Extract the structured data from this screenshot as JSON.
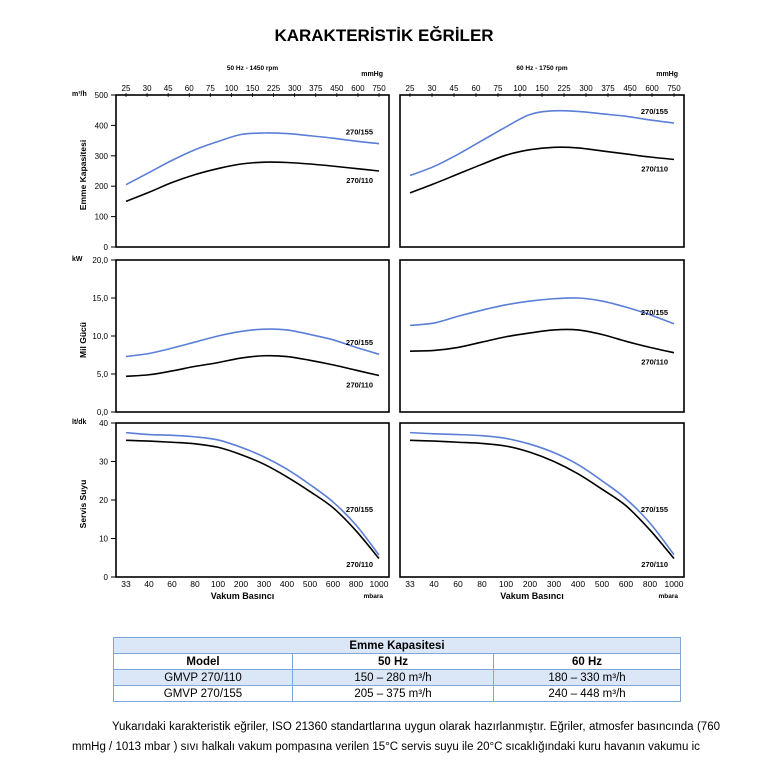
{
  "title": "KARAKTERİSTİK EĞRİLER",
  "colors": {
    "curve_155": "#5b7fd6",
    "curve_110": "#000000"
  },
  "top_axis": {
    "ticks": [
      "25",
      "30",
      "45",
      "60",
      "75",
      "100",
      "150",
      "225",
      "300",
      "375",
      "450",
      "600",
      "750"
    ],
    "unit": "mmHg",
    "left_label": "50 Hz - 1450 rpm",
    "right_label": "60 Hz - 1750 rpm"
  },
  "bottom_axis": {
    "ticks": [
      "33",
      "40",
      "60",
      "80",
      "100",
      "200",
      "300",
      "400",
      "500",
      "600",
      "800",
      "1000"
    ],
    "unit": "mbara",
    "label": "Vakum Basıncı"
  },
  "rows": [
    {
      "ylabel": "Emme Kapasitesi",
      "unit": "m³/h",
      "ylim": [
        0,
        500
      ],
      "ticks": [
        "0",
        "100",
        "200",
        "300",
        "400",
        "500"
      ]
    },
    {
      "ylabel": "Mil Gücü",
      "unit": "kW",
      "ylim": [
        0,
        20
      ],
      "ticks": [
        "0,0",
        "5,0",
        "10,0",
        "15,0",
        "20,0"
      ]
    },
    {
      "ylabel": "Servis Suyu",
      "unit": "lt/dk",
      "ylim": [
        0,
        40
      ],
      "ticks": [
        "0",
        "10",
        "20",
        "30",
        "40"
      ]
    }
  ],
  "chart_data": [
    {
      "type": "line",
      "panel": "capacity-50hz",
      "x": [
        33,
        40,
        60,
        80,
        100,
        200,
        300,
        400,
        500,
        600,
        800,
        1000
      ],
      "series": [
        {
          "name": "270/155",
          "values": [
            205,
            245,
            285,
            320,
            347,
            370,
            375,
            373,
            366,
            358,
            348,
            340
          ]
        },
        {
          "name": "270/110",
          "values": [
            150,
            180,
            212,
            238,
            258,
            273,
            279,
            278,
            273,
            266,
            258,
            250
          ]
        }
      ]
    },
    {
      "type": "line",
      "panel": "capacity-60hz",
      "x": [
        33,
        40,
        60,
        80,
        100,
        200,
        300,
        400,
        500,
        600,
        800,
        1000
      ],
      "series": [
        {
          "name": "270/155",
          "values": [
            235,
            265,
            305,
            350,
            395,
            436,
            448,
            446,
            438,
            430,
            418,
            408
          ]
        },
        {
          "name": "270/110",
          "values": [
            178,
            208,
            240,
            272,
            302,
            320,
            328,
            326,
            316,
            306,
            296,
            288
          ]
        }
      ]
    },
    {
      "type": "line",
      "panel": "power-50hz",
      "x": [
        33,
        40,
        60,
        80,
        100,
        200,
        300,
        400,
        500,
        600,
        800,
        1000
      ],
      "series": [
        {
          "name": "270/155",
          "values": [
            7.3,
            7.7,
            8.4,
            9.2,
            10.0,
            10.6,
            10.9,
            10.8,
            10.2,
            9.5,
            8.5,
            7.6
          ]
        },
        {
          "name": "270/110",
          "values": [
            4.7,
            4.9,
            5.4,
            6.0,
            6.5,
            7.1,
            7.4,
            7.3,
            6.8,
            6.2,
            5.5,
            4.8
          ]
        }
      ]
    },
    {
      "type": "line",
      "panel": "power-60hz",
      "x": [
        33,
        40,
        60,
        80,
        100,
        200,
        300,
        400,
        500,
        600,
        800,
        1000
      ],
      "series": [
        {
          "name": "270/155",
          "values": [
            11.4,
            11.7,
            12.6,
            13.4,
            14.1,
            14.6,
            14.9,
            15.0,
            14.6,
            13.8,
            12.8,
            11.6
          ]
        },
        {
          "name": "270/110",
          "values": [
            8.0,
            8.1,
            8.5,
            9.2,
            9.9,
            10.4,
            10.8,
            10.8,
            10.2,
            9.3,
            8.5,
            7.8
          ]
        }
      ]
    },
    {
      "type": "line",
      "panel": "water-50hz",
      "x": [
        33,
        40,
        60,
        80,
        100,
        200,
        300,
        400,
        500,
        600,
        800,
        1000
      ],
      "series": [
        {
          "name": "270/155",
          "values": [
            37.5,
            37.0,
            36.8,
            36.4,
            35.6,
            33.7,
            31.2,
            28.0,
            24.0,
            19.5,
            13.5,
            5.7
          ]
        },
        {
          "name": "270/110",
          "values": [
            35.5,
            35.3,
            35.0,
            34.6,
            33.7,
            31.8,
            29.3,
            26.0,
            22.2,
            18.0,
            12.0,
            4.8
          ]
        }
      ]
    },
    {
      "type": "line",
      "panel": "water-60hz",
      "x": [
        33,
        40,
        60,
        80,
        100,
        200,
        300,
        400,
        500,
        600,
        800,
        1000
      ],
      "series": [
        {
          "name": "270/155",
          "values": [
            37.5,
            37.2,
            37.0,
            36.7,
            36.0,
            34.5,
            32.3,
            29.2,
            25.0,
            20.3,
            14.0,
            5.8
          ]
        },
        {
          "name": "270/110",
          "values": [
            35.5,
            35.3,
            35.0,
            34.7,
            34.0,
            32.4,
            30.0,
            26.8,
            22.8,
            18.5,
            12.2,
            4.8
          ]
        }
      ]
    }
  ],
  "table": {
    "caption": "Emme Kapasitesi",
    "headers": [
      "Model",
      "50 Hz",
      "60 Hz"
    ],
    "rows": [
      [
        "GMVP 270/110",
        "150 – 280 m³/h",
        "180 – 330 m³/h"
      ],
      [
        "GMVP 270/155",
        "205 – 375 m³/h",
        "240 – 448 m³/h"
      ]
    ]
  },
  "footnote": "Yukarıdaki karakteristik eğriler, ISO 21360 standartlarına uygun olarak hazırlanmıştır. Eğriler, atmosfer basıncında (760 mmHg / 1013 mbar ) sıvı halkalı vakum pompasına verilen 15°C servis suyu ile 20°C sıcaklığındaki kuru havanın vakumu ic"
}
